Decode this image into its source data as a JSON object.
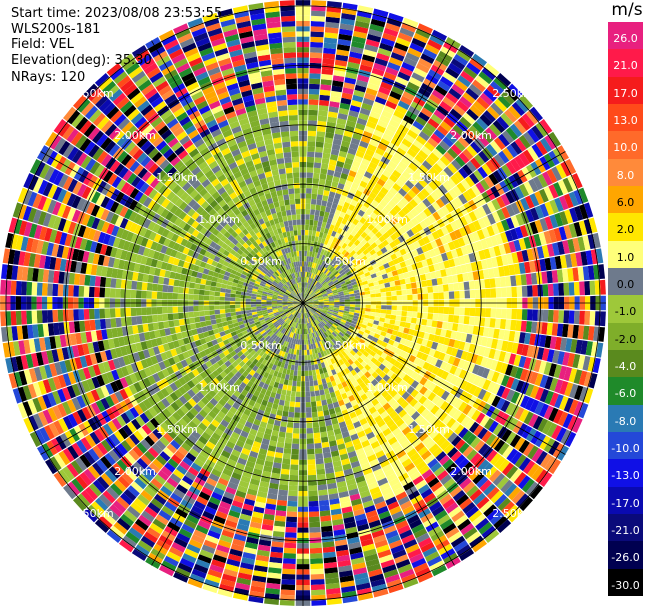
{
  "header": {
    "start_time": "Start time: 2023/08/08 23:53:55",
    "site": "WLS200s-181",
    "field": "Field: VEL",
    "elevation": "Elevation(deg): 35.30",
    "nrays": "NRays: 120"
  },
  "colorbar": {
    "unit": "m/s",
    "levels": [
      {
        "label": "26.0",
        "color": "#e8207f"
      },
      {
        "label": "21.0",
        "color": "#ff1a4a"
      },
      {
        "label": "17.0",
        "color": "#f51c1c"
      },
      {
        "label": "13.0",
        "color": "#ff4a1a"
      },
      {
        "label": "10.0",
        "color": "#ff6a2a"
      },
      {
        "label": "8.0",
        "color": "#ff8a3a"
      },
      {
        "label": "6.0",
        "color": "#ffa600"
      },
      {
        "label": "2.0",
        "color": "#ffe600"
      },
      {
        "label": "1.0",
        "color": "#ffff7a"
      },
      {
        "label": "0.0",
        "color": "#6e7a8c"
      },
      {
        "label": "-1.0",
        "color": "#9ec83a"
      },
      {
        "label": "-2.0",
        "color": "#7fae2a"
      },
      {
        "label": "-4.0",
        "color": "#5a8a1e"
      },
      {
        "label": "-6.0",
        "color": "#1f8a2a"
      },
      {
        "label": "-8.0",
        "color": "#2a7ab4"
      },
      {
        "label": "-10.0",
        "color": "#2448d8"
      },
      {
        "label": "-13.0",
        "color": "#1010e6"
      },
      {
        "label": "-17.0",
        "color": "#0a0ab0"
      },
      {
        "label": "-21.0",
        "color": "#0a0a7a"
      },
      {
        "label": "-26.0",
        "color": "#000050"
      },
      {
        "label": "-30.0",
        "color": "#000000"
      }
    ]
  },
  "chart_data": {
    "type": "heatmap",
    "projection": "polar (PPI)",
    "field": "VEL",
    "units": "m/s",
    "elevation_deg": 35.3,
    "n_rays": 120,
    "range_rings_km": [
      0.5,
      1.0,
      1.5,
      2.0,
      2.5
    ],
    "range_ring_labels": [
      "0.50km",
      "1.00km",
      "1.50km",
      "2.00km",
      "2.50km"
    ],
    "radial_spokes_deg": [
      0,
      30,
      60,
      90,
      120,
      150,
      180,
      210,
      240,
      270,
      300,
      330
    ],
    "regions": [
      {
        "range_km": [
          0.0,
          0.5
        ],
        "dominant_velocity_mps": [
          -2.0,
          0.0
        ],
        "note": "mixed green/gray with yellow patches"
      },
      {
        "range_km": [
          0.5,
          1.5
        ],
        "azimuth_sector": "east",
        "dominant_velocity_mps": [
          1.0,
          2.0
        ]
      },
      {
        "range_km": [
          0.5,
          1.5
        ],
        "azimuth_sector": "west",
        "dominant_velocity_mps": [
          -2.0,
          -1.0
        ]
      },
      {
        "range_km": [
          0.5,
          1.5
        ],
        "azimuth_sector": "north-west",
        "dominant_velocity_mps": [
          -1.0,
          0.0
        ]
      },
      {
        "range_km": [
          1.5,
          2.5
        ],
        "dominant_velocity_mps": [
          -30.0,
          26.0
        ],
        "note": "noisy, all colors"
      }
    ]
  }
}
